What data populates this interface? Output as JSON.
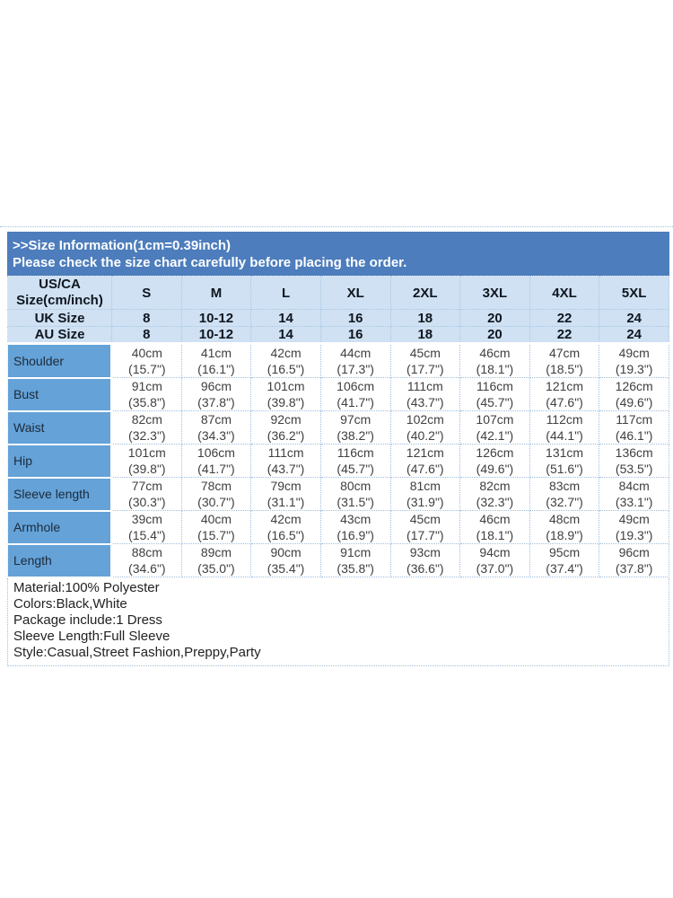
{
  "banner": {
    "title": ">>Size Information(1cm=0.39inch)",
    "subtitle": "Please check the size chart carefully before placing the order."
  },
  "size_table": {
    "corner_header_line1": "US/CA",
    "corner_header_line2": "Size(cm/inch)",
    "size_columns": [
      "S",
      "M",
      "L",
      "XL",
      "2XL",
      "3XL",
      "4XL",
      "5XL"
    ],
    "region_rows": [
      {
        "label": "UK Size",
        "values": [
          "8",
          "10-12",
          "14",
          "16",
          "18",
          "20",
          "22",
          "24"
        ]
      },
      {
        "label": "AU Size",
        "values": [
          "8",
          "10-12",
          "14",
          "16",
          "18",
          "20",
          "22",
          "24"
        ]
      }
    ],
    "measurement_rows": [
      {
        "label": "Shoulder",
        "cm": [
          "40cm",
          "41cm",
          "42cm",
          "44cm",
          "45cm",
          "46cm",
          "47cm",
          "49cm"
        ],
        "inch": [
          "(15.7\")",
          "(16.1\")",
          "(16.5\")",
          "(17.3\")",
          "(17.7\")",
          "(18.1\")",
          "(18.5\")",
          "(19.3\")"
        ]
      },
      {
        "label": "Bust",
        "cm": [
          "91cm",
          "96cm",
          "101cm",
          "106cm",
          "111cm",
          "116cm",
          "121cm",
          "126cm"
        ],
        "inch": [
          "(35.8\")",
          "(37.8\")",
          "(39.8\")",
          "(41.7\")",
          "(43.7\")",
          "(45.7\")",
          "(47.6\")",
          "(49.6\")"
        ]
      },
      {
        "label": "Waist",
        "cm": [
          "82cm",
          "87cm",
          "92cm",
          "97cm",
          "102cm",
          "107cm",
          "112cm",
          "117cm"
        ],
        "inch": [
          "(32.3\")",
          "(34.3\")",
          "(36.2\")",
          "(38.2\")",
          "(40.2\")",
          "(42.1\")",
          "(44.1\")",
          "(46.1\")"
        ]
      },
      {
        "label": "Hip",
        "cm": [
          "101cm",
          "106cm",
          "111cm",
          "116cm",
          "121cm",
          "126cm",
          "131cm",
          "136cm"
        ],
        "inch": [
          "(39.8\")",
          "(41.7\")",
          "(43.7\")",
          "(45.7\")",
          "(47.6\")",
          "(49.6\")",
          "(51.6\")",
          "(53.5\")"
        ]
      },
      {
        "label": "Sleeve length",
        "cm": [
          "77cm",
          "78cm",
          "79cm",
          "80cm",
          "81cm",
          "82cm",
          "83cm",
          "84cm"
        ],
        "inch": [
          "(30.3\")",
          "(30.7\")",
          "(31.1\")",
          "(31.5\")",
          "(31.9\")",
          "(32.3\")",
          "(32.7\")",
          "(33.1\")"
        ]
      },
      {
        "label": "Armhole",
        "cm": [
          "39cm",
          "40cm",
          "42cm",
          "43cm",
          "45cm",
          "46cm",
          "48cm",
          "49cm"
        ],
        "inch": [
          "(15.4\")",
          "(15.7\")",
          "(16.5\")",
          "(16.9\")",
          "(17.7\")",
          "(18.1\")",
          "(18.9\")",
          "(19.3\")"
        ]
      },
      {
        "label": "Length",
        "cm": [
          "88cm",
          "89cm",
          "90cm",
          "91cm",
          "93cm",
          "94cm",
          "95cm",
          "96cm"
        ],
        "inch": [
          "(34.6\")",
          "(35.0\")",
          "(35.4\")",
          "(35.8\")",
          "(36.6\")",
          "(37.0\")",
          "(37.4\")",
          "(37.8\")"
        ]
      }
    ]
  },
  "details": {
    "lines": [
      "Material:100% Polyester",
      "Colors:Black,White",
      "Package include:1 Dress",
      "Sleeve Length:Full Sleeve",
      "Style:Casual,Street Fashion,Preppy,Party"
    ]
  },
  "colors": {
    "banner_bg": "#4d7dbc",
    "header_bg": "#cfe1f3",
    "label_bg": "#64a2d8",
    "dotted_border": "#9fbede",
    "banner_text": "#ffffff",
    "header_text": "#10161f",
    "body_text": "#3f3f3f"
  }
}
